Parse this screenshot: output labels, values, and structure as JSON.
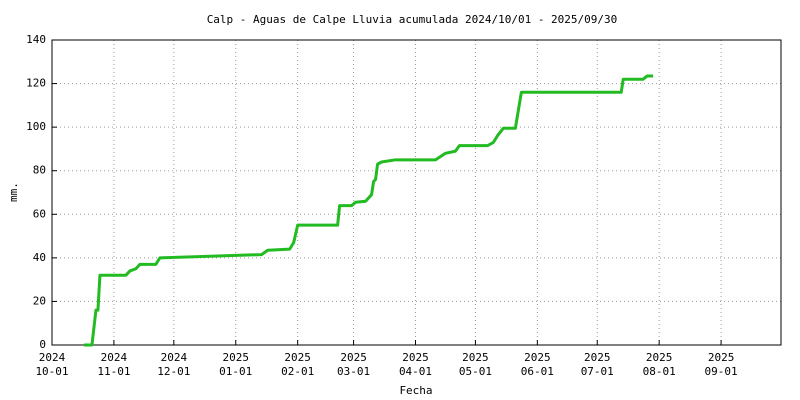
{
  "chart_data": {
    "type": "line",
    "title": "Calp - Aguas de Calpe Lluvia acumulada 2024/10/01 - 2025/09/30",
    "x_label": "Fecha",
    "y_label": "mm.",
    "x": [
      "2024-10-17",
      "2024-10-21",
      "2024-10-23",
      "2024-10-24",
      "2024-10-25",
      "2024-11-07",
      "2024-11-09",
      "2024-11-12",
      "2024-11-14",
      "2024-11-22",
      "2024-11-24",
      "2025-01-14",
      "2025-01-17",
      "2025-01-28",
      "2025-01-30",
      "2025-02-01",
      "2025-02-21",
      "2025-02-22",
      "2025-02-28",
      "2025-03-02",
      "2025-03-07",
      "2025-03-10",
      "2025-03-11",
      "2025-03-12",
      "2025-03-13",
      "2025-03-15",
      "2025-03-22",
      "2025-04-11",
      "2025-04-16",
      "2025-04-21",
      "2025-04-23",
      "2025-05-07",
      "2025-05-10",
      "2025-05-12",
      "2025-05-15",
      "2025-05-21",
      "2025-05-24",
      "2025-06-16",
      "2025-07-13",
      "2025-07-14",
      "2025-07-24",
      "2025-07-26",
      "2025-07-29"
    ],
    "series": [
      {
        "color": "#22bb22",
        "values": [
          0,
          0,
          16,
          16,
          32,
          32,
          34,
          35,
          37,
          37,
          40,
          41.5,
          43.5,
          44,
          47,
          55,
          55,
          64,
          64,
          65.5,
          66,
          69,
          75,
          76,
          83,
          84,
          85,
          85,
          88,
          89,
          91.5,
          91.5,
          93,
          96,
          99.5,
          99.5,
          116,
          116,
          116,
          122,
          122,
          123.5,
          123.5
        ]
      }
    ],
    "xlim": [
      "2024-10-01",
      "2025-10-01"
    ],
    "xticks": [
      {
        "value": "2024-10-01",
        "label": [
          "2024",
          "10-01"
        ]
      },
      {
        "value": "2024-11-01",
        "label": [
          "2024",
          "11-01"
        ]
      },
      {
        "value": "2024-12-01",
        "label": [
          "2024",
          "12-01"
        ]
      },
      {
        "value": "2025-01-01",
        "label": [
          "2025",
          "01-01"
        ]
      },
      {
        "value": "2025-02-01",
        "label": [
          "2025",
          "02-01"
        ]
      },
      {
        "value": "2025-03-01",
        "label": [
          "2025",
          "03-01"
        ]
      },
      {
        "value": "2025-04-01",
        "label": [
          "2025",
          "04-01"
        ]
      },
      {
        "value": "2025-05-01",
        "label": [
          "2025",
          "05-01"
        ]
      },
      {
        "value": "2025-06-01",
        "label": [
          "2025",
          "06-01"
        ]
      },
      {
        "value": "2025-07-01",
        "label": [
          "2025",
          "07-01"
        ]
      },
      {
        "value": "2025-08-01",
        "label": [
          "2025",
          "08-01"
        ]
      },
      {
        "value": "2025-09-01",
        "label": [
          "2025",
          "09-01"
        ]
      }
    ],
    "ylim": [
      0,
      140
    ],
    "yticks": [
      0,
      20,
      40,
      60,
      80,
      100,
      120,
      140
    ],
    "grid": true
  }
}
